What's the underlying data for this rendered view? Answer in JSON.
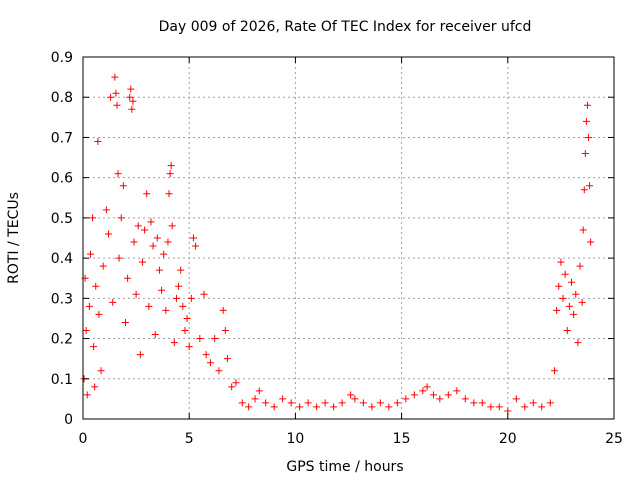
{
  "chart_data": {
    "type": "scatter",
    "title": "Day 009 of 2026, Rate Of TEC Index for receiver ufcd",
    "xlabel": "GPS time / hours",
    "ylabel": "ROTI / TECUs",
    "xlim": [
      0,
      25
    ],
    "ylim": [
      0,
      0.9
    ],
    "x_ticks": [
      0,
      5,
      10,
      15,
      20,
      25
    ],
    "y_ticks": [
      0,
      0.1,
      0.2,
      0.3,
      0.4,
      0.5,
      0.6,
      0.7,
      0.8,
      0.9
    ],
    "x_tick_labels": [
      "0",
      "5",
      "10",
      "15",
      "20",
      "25"
    ],
    "y_tick_labels": [
      "0",
      "0.1",
      "0.2",
      "0.3",
      "0.4",
      "0.5",
      "0.6",
      "0.7",
      "0.8",
      "0.9"
    ],
    "grid": true,
    "marker": "plus",
    "color": "#ff0000",
    "series": [
      {
        "points": [
          [
            0.05,
            0.1
          ],
          [
            0.1,
            0.35
          ],
          [
            0.15,
            0.22
          ],
          [
            0.2,
            0.06
          ],
          [
            0.3,
            0.28
          ],
          [
            0.35,
            0.41
          ],
          [
            0.45,
            0.5
          ],
          [
            0.5,
            0.18
          ],
          [
            0.55,
            0.08
          ],
          [
            0.6,
            0.33
          ],
          [
            0.7,
            0.69
          ],
          [
            0.75,
            0.26
          ],
          [
            0.85,
            0.12
          ],
          [
            0.95,
            0.38
          ],
          [
            1.1,
            0.52
          ],
          [
            1.2,
            0.46
          ],
          [
            1.3,
            0.8
          ],
          [
            1.4,
            0.29
          ],
          [
            1.5,
            0.85
          ],
          [
            1.55,
            0.81
          ],
          [
            1.6,
            0.78
          ],
          [
            1.65,
            0.61
          ],
          [
            1.7,
            0.4
          ],
          [
            1.8,
            0.5
          ],
          [
            1.9,
            0.58
          ],
          [
            2.0,
            0.24
          ],
          [
            2.1,
            0.35
          ],
          [
            2.2,
            0.8
          ],
          [
            2.25,
            0.82
          ],
          [
            2.3,
            0.77
          ],
          [
            2.35,
            0.79
          ],
          [
            2.4,
            0.44
          ],
          [
            2.5,
            0.31
          ],
          [
            2.6,
            0.48
          ],
          [
            2.7,
            0.16
          ],
          [
            2.8,
            0.39
          ],
          [
            2.9,
            0.47
          ],
          [
            3.0,
            0.56
          ],
          [
            3.1,
            0.28
          ],
          [
            3.2,
            0.49
          ],
          [
            3.3,
            0.43
          ],
          [
            3.4,
            0.21
          ],
          [
            3.5,
            0.45
          ],
          [
            3.6,
            0.37
          ],
          [
            3.7,
            0.32
          ],
          [
            3.8,
            0.41
          ],
          [
            3.9,
            0.27
          ],
          [
            4.0,
            0.44
          ],
          [
            4.05,
            0.56
          ],
          [
            4.1,
            0.61
          ],
          [
            4.15,
            0.63
          ],
          [
            4.2,
            0.48
          ],
          [
            4.3,
            0.19
          ],
          [
            4.4,
            0.3
          ],
          [
            4.5,
            0.33
          ],
          [
            4.6,
            0.37
          ],
          [
            4.7,
            0.28
          ],
          [
            4.8,
            0.22
          ],
          [
            4.9,
            0.25
          ],
          [
            5.0,
            0.18
          ],
          [
            5.1,
            0.3
          ],
          [
            5.2,
            0.45
          ],
          [
            5.3,
            0.43
          ],
          [
            5.5,
            0.2
          ],
          [
            5.7,
            0.31
          ],
          [
            5.8,
            0.16
          ],
          [
            6.0,
            0.14
          ],
          [
            6.2,
            0.2
          ],
          [
            6.4,
            0.12
          ],
          [
            6.6,
            0.27
          ],
          [
            6.7,
            0.22
          ],
          [
            6.8,
            0.15
          ],
          [
            7.0,
            0.08
          ],
          [
            7.2,
            0.09
          ],
          [
            7.5,
            0.04
          ],
          [
            7.8,
            0.03
          ],
          [
            8.1,
            0.05
          ],
          [
            8.3,
            0.07
          ],
          [
            8.6,
            0.04
          ],
          [
            9.0,
            0.03
          ],
          [
            9.4,
            0.05
          ],
          [
            9.8,
            0.04
          ],
          [
            10.2,
            0.03
          ],
          [
            10.6,
            0.04
          ],
          [
            11.0,
            0.03
          ],
          [
            11.4,
            0.04
          ],
          [
            11.8,
            0.03
          ],
          [
            12.2,
            0.04
          ],
          [
            12.6,
            0.06
          ],
          [
            12.8,
            0.05
          ],
          [
            13.2,
            0.04
          ],
          [
            13.6,
            0.03
          ],
          [
            14.0,
            0.04
          ],
          [
            14.4,
            0.03
          ],
          [
            14.8,
            0.04
          ],
          [
            15.2,
            0.05
          ],
          [
            15.6,
            0.06
          ],
          [
            16.0,
            0.07
          ],
          [
            16.2,
            0.08
          ],
          [
            16.5,
            0.06
          ],
          [
            16.8,
            0.05
          ],
          [
            17.2,
            0.06
          ],
          [
            17.6,
            0.07
          ],
          [
            18.0,
            0.05
          ],
          [
            18.4,
            0.04
          ],
          [
            18.8,
            0.04
          ],
          [
            19.2,
            0.03
          ],
          [
            19.6,
            0.03
          ],
          [
            20.0,
            0.02
          ],
          [
            20.4,
            0.05
          ],
          [
            20.8,
            0.03
          ],
          [
            21.2,
            0.04
          ],
          [
            21.6,
            0.03
          ],
          [
            22.0,
            0.04
          ],
          [
            22.2,
            0.12
          ],
          [
            22.3,
            0.27
          ],
          [
            22.4,
            0.33
          ],
          [
            22.5,
            0.39
          ],
          [
            22.6,
            0.3
          ],
          [
            22.7,
            0.36
          ],
          [
            22.8,
            0.22
          ],
          [
            22.9,
            0.28
          ],
          [
            23.0,
            0.34
          ],
          [
            23.1,
            0.26
          ],
          [
            23.2,
            0.31
          ],
          [
            23.3,
            0.19
          ],
          [
            23.4,
            0.38
          ],
          [
            23.5,
            0.29
          ],
          [
            23.55,
            0.47
          ],
          [
            23.6,
            0.57
          ],
          [
            23.65,
            0.66
          ],
          [
            23.7,
            0.74
          ],
          [
            23.75,
            0.78
          ],
          [
            23.8,
            0.7
          ],
          [
            23.85,
            0.58
          ],
          [
            23.9,
            0.44
          ]
        ]
      }
    ]
  }
}
